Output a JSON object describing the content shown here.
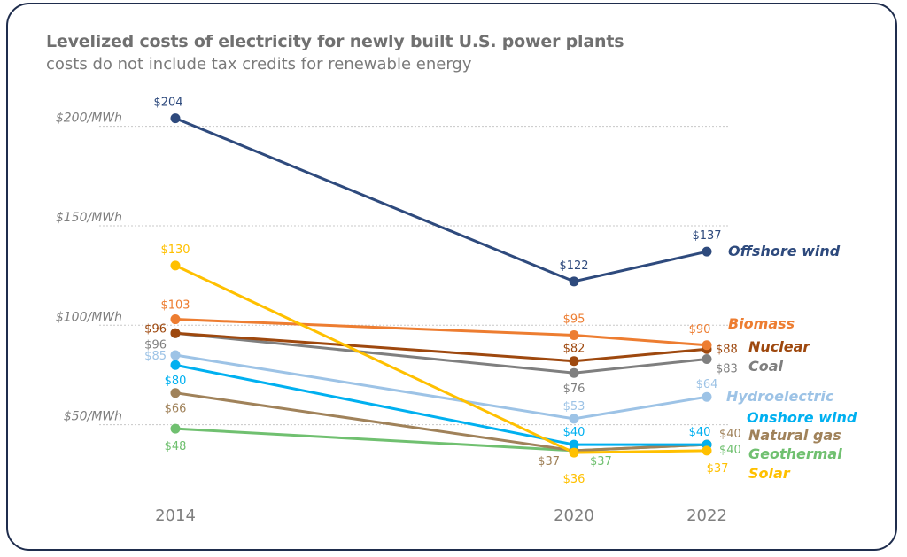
{
  "chart_data": {
    "type": "line",
    "title": "Levelized costs of electricity for newly built U.S. power plants",
    "subtitle": "costs do not include tax credits for renewable energy",
    "x": [
      "2014",
      "2020",
      "2022"
    ],
    "y_ticks": [
      {
        "value": 50,
        "label": "$50/MWh"
      },
      {
        "value": 100,
        "label": "$100/MWh"
      },
      {
        "value": 150,
        "label": "$150/MWh"
      },
      {
        "value": 200,
        "label": "$200/MWh"
      }
    ],
    "grid": "horizontal dotted",
    "legend": "direct labels at right",
    "series": [
      {
        "name": "Offshore wind",
        "color": "#2e4a7d",
        "values": [
          204,
          122,
          137
        ],
        "labels": [
          "$204",
          "$122",
          "$137"
        ]
      },
      {
        "name": "Biomass",
        "color": "#ed7d31",
        "values": [
          103,
          95,
          90
        ],
        "labels": [
          "$103",
          "$95",
          "$90"
        ]
      },
      {
        "name": "Nuclear",
        "color": "#9e480e",
        "values": [
          96,
          82,
          88
        ],
        "labels": [
          "$96",
          "$82",
          "$88"
        ]
      },
      {
        "name": "Coal",
        "color": "#7f7f7f",
        "values": [
          96,
          76,
          83
        ],
        "labels": [
          "$96",
          "$76",
          "$83"
        ]
      },
      {
        "name": "Hydroelectric",
        "color": "#9dc3e6",
        "values": [
          85,
          53,
          64
        ],
        "labels": [
          "$85",
          "$53",
          "$64"
        ]
      },
      {
        "name": "Onshore wind",
        "color": "#00b0f0",
        "values": [
          80,
          40,
          40
        ],
        "labels": [
          "$80",
          "$40",
          "$40"
        ]
      },
      {
        "name": "Natural gas",
        "color": "#a0825a",
        "values": [
          66,
          37,
          40
        ],
        "labels": [
          "$66",
          "$37",
          "$40"
        ]
      },
      {
        "name": "Geothermal",
        "color": "#70c070",
        "values": [
          48,
          37,
          40
        ],
        "labels": [
          "$48",
          "$37",
          "$40"
        ]
      },
      {
        "name": "Solar",
        "color": "#ffc000",
        "values": [
          130,
          36,
          37
        ],
        "labels": [
          "$130",
          "$36",
          "$37"
        ]
      }
    ]
  }
}
